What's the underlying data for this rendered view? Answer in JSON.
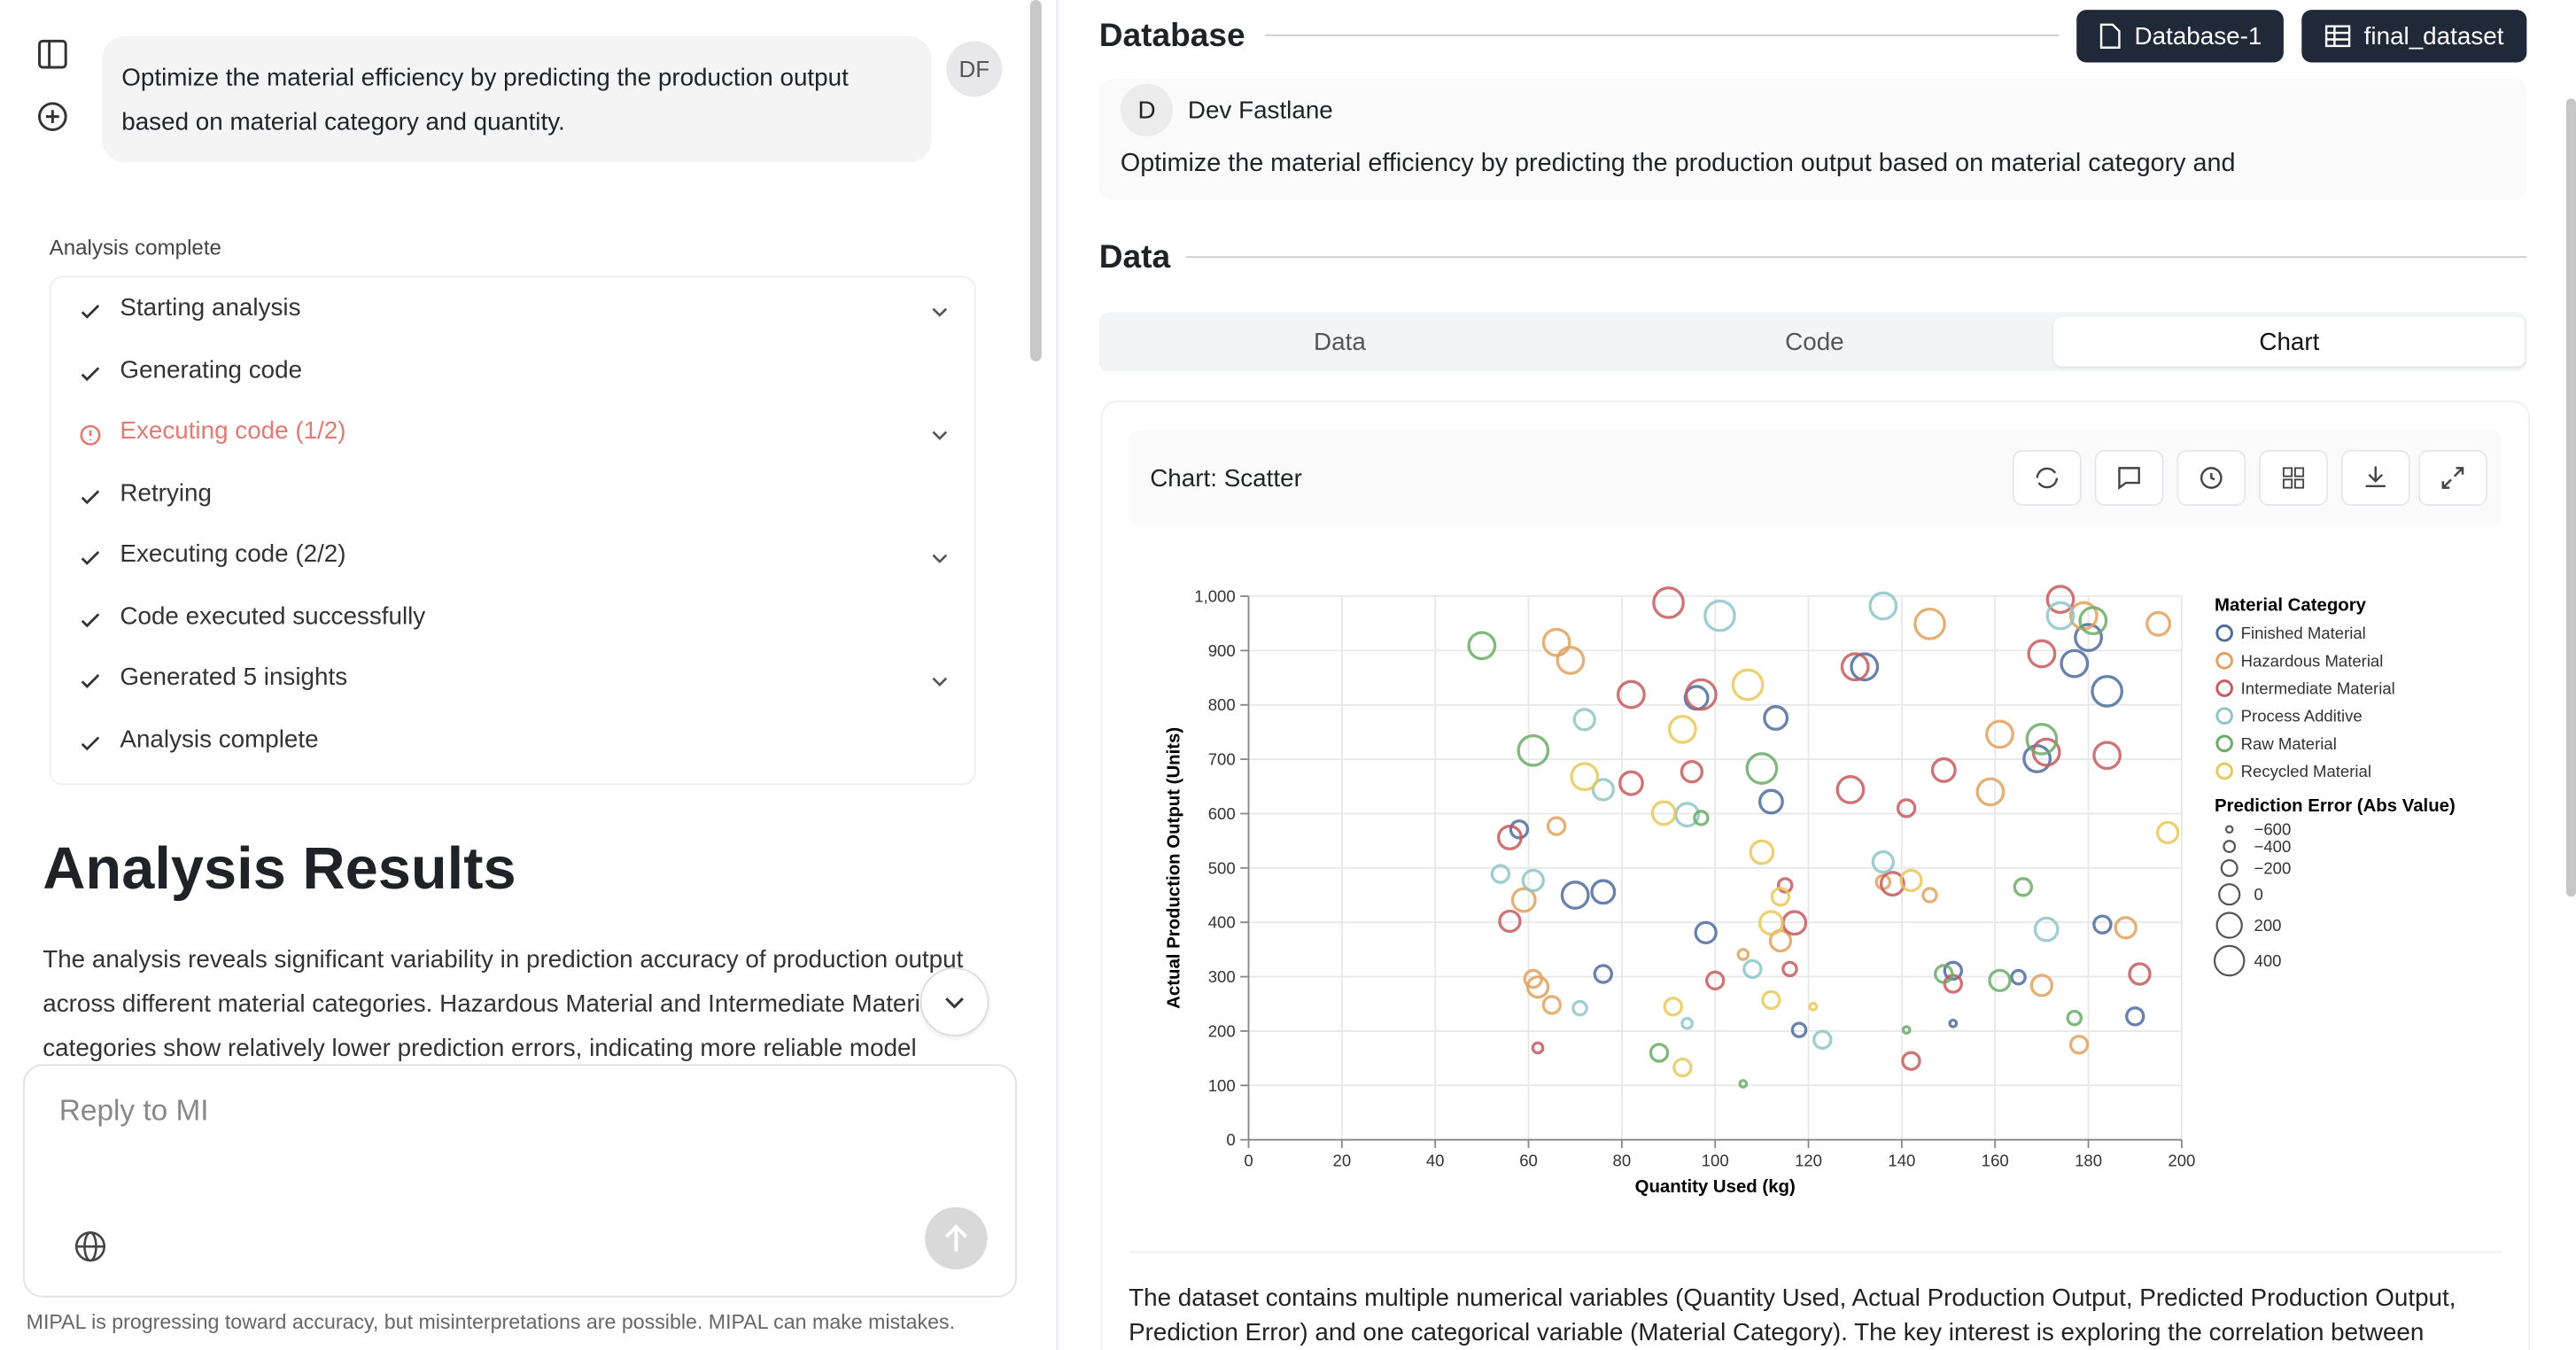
{
  "chat": {
    "user_message": "Optimize the material efficiency by predicting the production output based on material category and quantity.",
    "avatar": "DF",
    "status_label": "Analysis complete",
    "steps": [
      {
        "label": "Starting analysis",
        "status": "done",
        "expandable": true
      },
      {
        "label": "Generating code",
        "status": "done",
        "expandable": false
      },
      {
        "label": "Executing code (1/2)",
        "status": "error",
        "expandable": true
      },
      {
        "label": "Retrying",
        "status": "done",
        "expandable": false
      },
      {
        "label": "Executing code (2/2)",
        "status": "done",
        "expandable": true
      },
      {
        "label": "Code executed successfully",
        "status": "done",
        "expandable": false
      },
      {
        "label": "Generated 5 insights",
        "status": "done",
        "expandable": true
      },
      {
        "label": "Analysis complete",
        "status": "done",
        "expandable": false
      }
    ],
    "results_title": "Analysis Results",
    "results_text": "The analysis reveals significant variability in prediction accuracy of production output across different material categories. Hazardous Material and Intermediate Material categories show relatively lower prediction errors, indicating more reliable model",
    "reply_placeholder": "Reply to MI",
    "disclaimer": "MIPAL is progressing toward accuracy, but misinterpretations are possible. MIPAL can make mistakes."
  },
  "database": {
    "title": "Database",
    "buttons": [
      "Database-1",
      "final_dataset"
    ],
    "user_initial": "D",
    "user_name": "Dev Fastlane",
    "message": "Optimize the material efficiency by predicting the production output based on material category and"
  },
  "data_section": {
    "title": "Data",
    "tabs": [
      "Data",
      "Code",
      "Chart"
    ],
    "active_tab": 2,
    "chart_header": "Chart: Scatter",
    "description": "The dataset contains multiple numerical variables (Quantity Used, Actual Production Output, Predicted Production Output, Prediction Error) and one categorical variable (Material Category). The key interest is exploring the correlation between"
  },
  "chart_data": {
    "type": "scatter",
    "x_label": "Quantity Used (kg)",
    "y_label": "Actual Production Output (Units)",
    "xlim": [
      0,
      200
    ],
    "ylim": [
      0,
      1000
    ],
    "xticks": [
      0,
      20,
      40,
      60,
      80,
      100,
      120,
      140,
      160,
      180,
      200
    ],
    "yticks": [
      0,
      100,
      200,
      300,
      400,
      500,
      600,
      700,
      800,
      900,
      {
        "value": 1000,
        "label": "1,000"
      }
    ],
    "grid": true,
    "legend_title": "Material Category",
    "size_legend_title": "Prediction Error (Abs Value)",
    "size_ticks": [
      {
        "value": -600,
        "label": "−600"
      },
      {
        "value": -400,
        "label": "−400"
      },
      {
        "value": -200,
        "label": "−200"
      },
      0,
      200,
      400
    ],
    "size_range": [
      -600,
      400
    ],
    "series": [
      {
        "name": "Finished Material",
        "color": "#4f6c9c",
        "x": [
          58,
          70,
          76,
          76,
          96,
          98,
          113,
          112,
          118,
          132,
          151,
          151,
          169,
          177,
          180,
          184,
          183,
          165,
          190
        ],
        "y": [
          571,
          450,
          456,
          305,
          813,
          381,
          776,
          622,
          202,
          870,
          311,
          214,
          701,
          876,
          924,
          825,
          396,
          299,
          227
        ],
        "size": [
          -150,
          250,
          100,
          -150,
          100,
          0,
          100,
          100,
          -300,
          250,
          -150,
          -600,
          250,
          250,
          250,
          400,
          -150,
          -300,
          -150
        ]
      },
      {
        "name": "Hazardous Material",
        "color": "#e0a25e",
        "x": [
          66,
          69,
          66,
          59,
          61,
          62,
          65,
          106,
          114,
          146,
          136,
          146,
          161,
          159,
          170,
          188,
          178,
          195,
          179
        ],
        "y": [
          915,
          882,
          577,
          441,
          296,
          281,
          248,
          341,
          366,
          949,
          474,
          450,
          746,
          640,
          284,
          390,
          175,
          949,
          964
        ],
        "size": [
          250,
          250,
          -150,
          100,
          -150,
          0,
          -150,
          -450,
          0,
          400,
          -300,
          -300,
          250,
          250,
          0,
          0,
          -150,
          100,
          250
        ]
      },
      {
        "name": "Intermediate Material",
        "color": "#c65a5e",
        "x": [
          90,
          82,
          82,
          97,
          95,
          56,
          56,
          62,
          100,
          115,
          117,
          116,
          130,
          129,
          138,
          141,
          142,
          149,
          151,
          170,
          171,
          174,
          184,
          191
        ],
        "y": [
          988,
          819,
          656,
          819,
          677,
          556,
          402,
          169,
          293,
          468,
          399,
          314,
          870,
          644,
          471,
          610,
          145,
          680,
          287,
          894,
          713,
          994,
          707,
          305
        ],
        "size": [
          400,
          250,
          100,
          400,
          0,
          100,
          0,
          -450,
          -150,
          -300,
          100,
          -300,
          250,
          250,
          100,
          -150,
          -150,
          100,
          -150,
          250,
          250,
          250,
          250,
          0
        ]
      },
      {
        "name": "Process Additive",
        "color": "#8ec5c8",
        "x": [
          101,
          72,
          76,
          54,
          61,
          71,
          94,
          94,
          108,
          123,
          136,
          136,
          174,
          171
        ],
        "y": [
          964,
          773,
          644,
          489,
          477,
          242,
          598,
          214,
          314,
          184,
          982,
          511,
          964,
          387
        ],
        "size": [
          400,
          0,
          0,
          -150,
          0,
          -300,
          100,
          -450,
          -150,
          -150,
          250,
          0,
          250,
          100
        ]
      },
      {
        "name": "Raw Material",
        "color": "#6aab66",
        "x": [
          50,
          61,
          97,
          110,
          88,
          106,
          141,
          149,
          161,
          166,
          170,
          181,
          177
        ],
        "y": [
          909,
          716,
          592,
          683,
          160,
          103,
          202,
          305,
          293,
          465,
          737,
          955,
          224
        ],
        "size": [
          250,
          400,
          -300,
          400,
          -150,
          -600,
          -600,
          -150,
          0,
          -150,
          400,
          250,
          -300
        ]
      },
      {
        "name": "Recycled Material",
        "color": "#e8c85c",
        "x": [
          72,
          89,
          93,
          107,
          110,
          114,
          112,
          112,
          121,
          91,
          93,
          142,
          197
        ],
        "y": [
          668,
          601,
          755,
          837,
          529,
          447,
          399,
          257,
          245,
          245,
          133,
          477,
          565
        ],
        "size": [
          250,
          100,
          250,
          400,
          100,
          -150,
          100,
          -150,
          -600,
          -150,
          -150,
          0,
          0
        ]
      }
    ]
  }
}
